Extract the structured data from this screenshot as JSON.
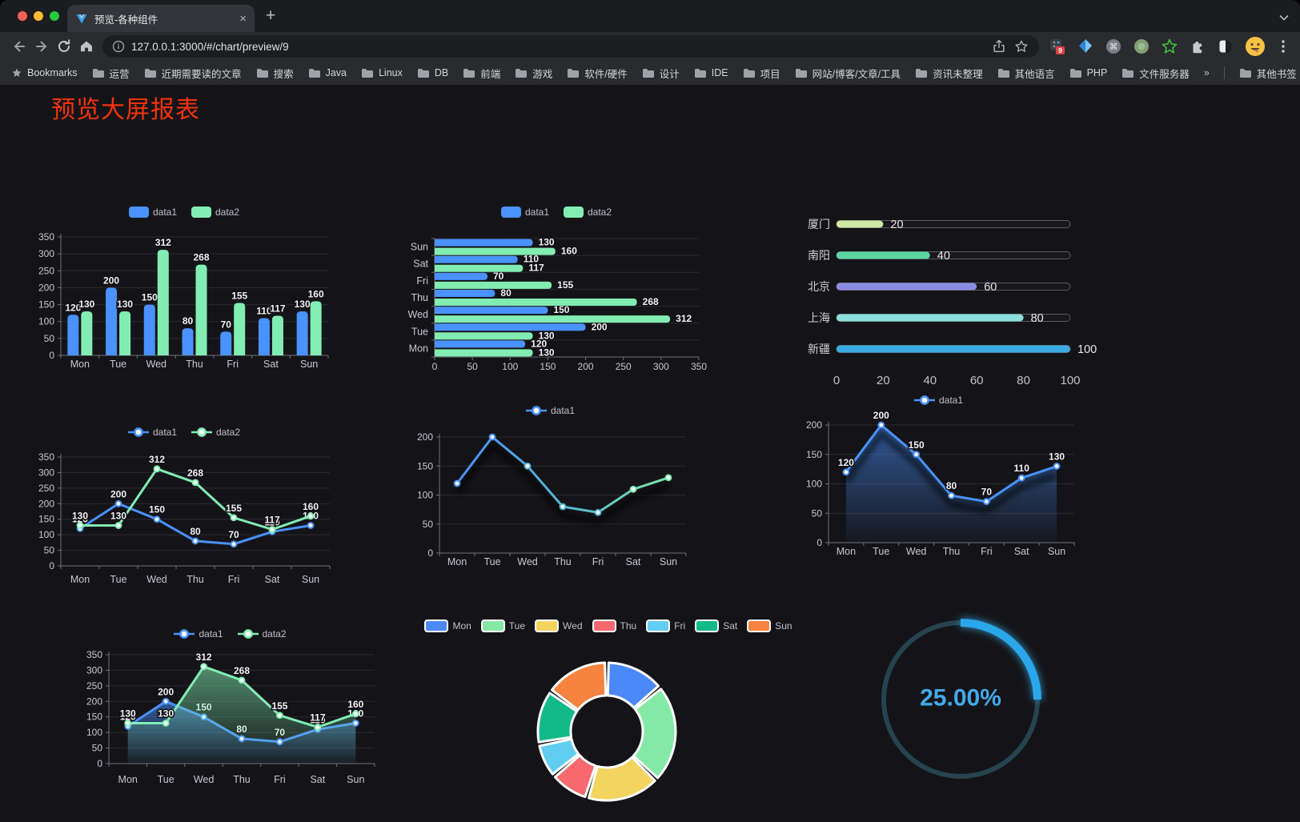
{
  "browser": {
    "tab_title": "预览-各种组件",
    "url": "127.0.0.1:3000/#/chart/preview/9",
    "extension_badge": "9",
    "bookmarks": [
      "Bookmarks",
      "运营",
      "近期需要读的文章",
      "搜索",
      "Java",
      "Linux",
      "DB",
      "前端",
      "游戏",
      "软件/硬件",
      "设计",
      "IDE",
      "项目",
      "网站/博客/文章/工具",
      "资讯未整理",
      "其他语言",
      "PHP",
      "文件服务器",
      "»",
      "其他书签"
    ]
  },
  "page": {
    "title": "预览大屏报表",
    "title_color": "#f5320a",
    "background": "#141418"
  },
  "chart_data": [
    {
      "id": "bar-vertical",
      "type": "bar",
      "categories": [
        "Mon",
        "Tue",
        "Wed",
        "Thu",
        "Fri",
        "Sat",
        "Sun"
      ],
      "series": [
        {
          "name": "data1",
          "color": "#4992ff",
          "values": [
            120,
            200,
            150,
            80,
            70,
            110,
            130
          ]
        },
        {
          "name": "data2",
          "color": "#82edb2",
          "values": [
            130,
            130,
            312,
            268,
            155,
            117,
            160
          ]
        }
      ],
      "ylim": [
        0,
        350
      ],
      "ytick_step": 50,
      "data_labels": true,
      "legend_position": "top",
      "grid": true
    },
    {
      "id": "bar-horizontal",
      "type": "bar-horizontal",
      "categories": [
        "Mon",
        "Tue",
        "Wed",
        "Thu",
        "Fri",
        "Sat",
        "Sun"
      ],
      "first_category_at_bottom": true,
      "series": [
        {
          "name": "data1",
          "color": "#4992ff",
          "values": [
            120,
            200,
            150,
            80,
            70,
            110,
            130
          ]
        },
        {
          "name": "data2",
          "color": "#82edb2",
          "values": [
            130,
            130,
            312,
            268,
            155,
            117,
            160
          ]
        }
      ],
      "xlim": [
        0,
        350
      ],
      "xtick_step": 50,
      "data_labels": true,
      "legend_position": "top",
      "grid": true
    },
    {
      "id": "progress-bars",
      "type": "progress-bars",
      "categories": [
        "厦门",
        "南阳",
        "北京",
        "上海",
        "新疆"
      ],
      "values": [
        20,
        40,
        60,
        80,
        100
      ],
      "colors": [
        "#cfe8a2",
        "#5bd6a3",
        "#8b8ce1",
        "#8adfdb",
        "#3caae2"
      ],
      "xticks": [
        0,
        20,
        40,
        60,
        80,
        100
      ],
      "xlim": [
        0,
        100
      ],
      "data_labels": true
    },
    {
      "id": "line-dual",
      "type": "line",
      "categories": [
        "Mon",
        "Tue",
        "Wed",
        "Thu",
        "Fri",
        "Sat",
        "Sun"
      ],
      "series": [
        {
          "name": "data1",
          "color": "#4992ff",
          "values": [
            120,
            200,
            150,
            80,
            70,
            110,
            130
          ]
        },
        {
          "name": "data2",
          "color": "#82edb2",
          "values": [
            130,
            130,
            312,
            268,
            155,
            117,
            160
          ]
        }
      ],
      "ylim": [
        0,
        350
      ],
      "ytick_step": 50,
      "data_labels": true,
      "markers": true,
      "legend_position": "top",
      "grid": true
    },
    {
      "id": "line-gradient",
      "type": "line",
      "categories": [
        "Mon",
        "Tue",
        "Wed",
        "Thu",
        "Fri",
        "Sat",
        "Sun"
      ],
      "series": [
        {
          "name": "data1",
          "color": "#4992ff",
          "gradient": [
            "#4a90fa",
            "#54b6d4",
            "#7be3a8"
          ],
          "values": [
            120,
            200,
            150,
            80,
            70,
            110,
            130
          ]
        }
      ],
      "ylim": [
        0,
        200
      ],
      "ytick_step": 50,
      "data_labels": false,
      "markers": true,
      "shadow": true,
      "legend_position": "top",
      "grid": true
    },
    {
      "id": "area-single",
      "type": "area",
      "categories": [
        "Mon",
        "Tue",
        "Wed",
        "Thu",
        "Fri",
        "Sat",
        "Sun"
      ],
      "series": [
        {
          "name": "data1",
          "color": "#4992ff",
          "area": true,
          "values": [
            120,
            200,
            150,
            80,
            70,
            110,
            130
          ]
        }
      ],
      "ylim": [
        0,
        200
      ],
      "ytick_step": 50,
      "data_labels": true,
      "markers": true,
      "shadow": true,
      "legend_position": "top",
      "grid": true
    },
    {
      "id": "line-area-dual",
      "type": "area",
      "categories": [
        "Mon",
        "Tue",
        "Wed",
        "Thu",
        "Fri",
        "Sat",
        "Sun"
      ],
      "series": [
        {
          "name": "data1",
          "color": "#4992ff",
          "area": true,
          "values": [
            120,
            200,
            150,
            80,
            70,
            110,
            130
          ]
        },
        {
          "name": "data2",
          "color": "#82edb2",
          "area": true,
          "values": [
            130,
            130,
            312,
            268,
            155,
            117,
            160
          ]
        }
      ],
      "ylim": [
        0,
        350
      ],
      "ytick_step": 50,
      "data_labels": true,
      "markers": true,
      "legend_position": "top",
      "grid": true
    },
    {
      "id": "donut",
      "type": "pie",
      "inner_radius_pct": 53,
      "categories": [
        "Mon",
        "Tue",
        "Wed",
        "Thu",
        "Fri",
        "Sat",
        "Sun"
      ],
      "values": [
        120,
        200,
        150,
        80,
        70,
        110,
        130
      ],
      "colors": [
        "#4a89f7",
        "#85e9a6",
        "#f2d45f",
        "#f7696f",
        "#61cef1",
        "#13b988",
        "#f6833f"
      ],
      "legend_position": "top"
    },
    {
      "id": "ring-progress",
      "type": "gauge",
      "value": 25,
      "max": 100,
      "label": "25.00%",
      "color": "#2ba7ea",
      "track_color": "#26444f",
      "text_color": "#43a9ea"
    }
  ]
}
